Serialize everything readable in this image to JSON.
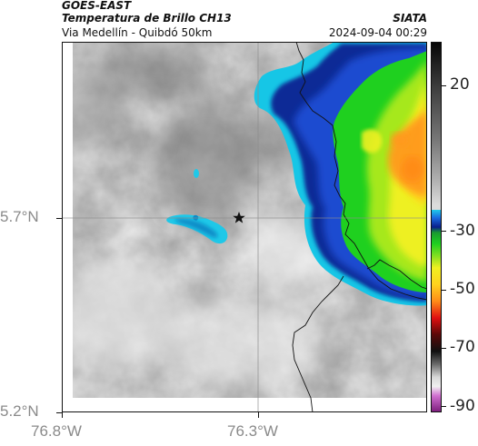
{
  "header": {
    "satellite": "GOES-EAST",
    "product": "Temperatura de Brillo CH13",
    "route": "Via Medellín - Quibdó 50km",
    "org": "SIATA",
    "datetime": "2024-09-04 00:29"
  },
  "map": {
    "lat_ticks": [
      {
        "label": "5.7°N",
        "lat": 5.7
      },
      {
        "label": "5.2°N",
        "lat": 5.2
      }
    ],
    "lon_ticks": [
      {
        "label": "76.8°W",
        "lon": -76.8
      },
      {
        "label": "76.3°W",
        "lon": -76.3
      }
    ],
    "marker": "star",
    "colorbar": {
      "range": [
        -92,
        35
      ],
      "ticks": [
        {
          "label": "20",
          "value": 20
        },
        {
          "label": "-30",
          "value": -30
        },
        {
          "label": "-50",
          "value": -50
        },
        {
          "label": "-70",
          "value": -70
        },
        {
          "label": "-90",
          "value": -90
        }
      ]
    },
    "colors": {
      "cold_blue": "#0d2f9a",
      "cyan": "#1fc8e8",
      "green": "#20c020",
      "yellow": "#f0f020",
      "orange": "#ff9a1e"
    }
  }
}
